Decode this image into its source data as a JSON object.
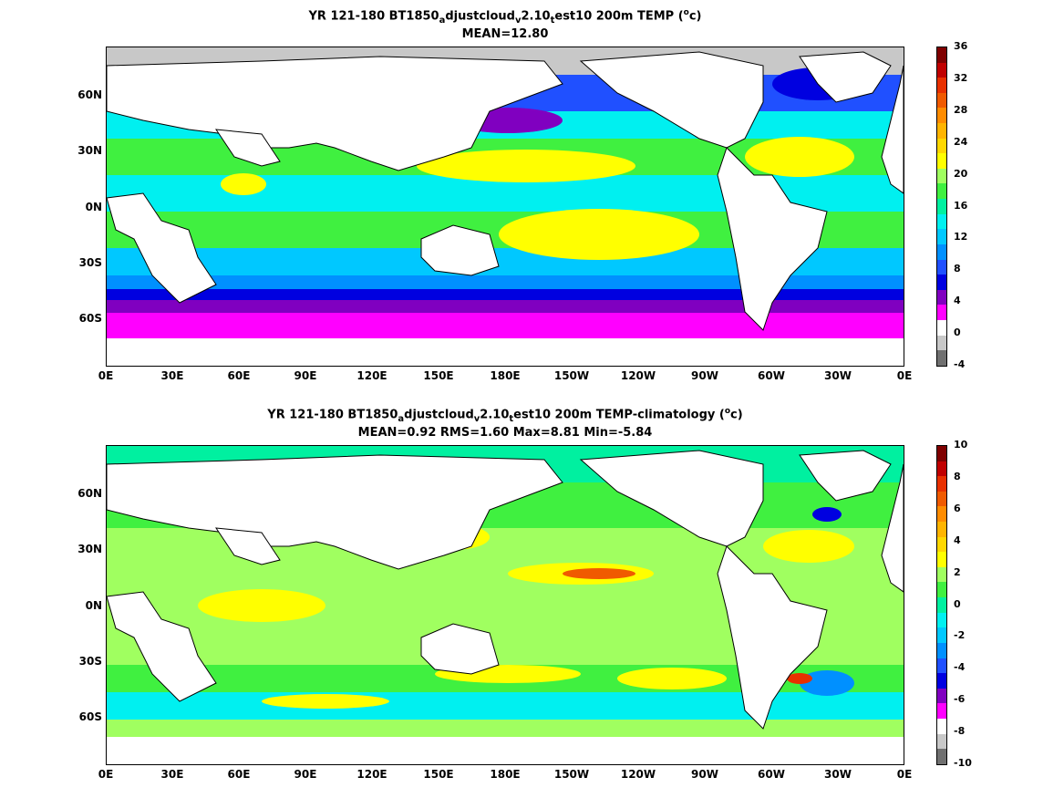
{
  "panels": [
    {
      "title_main": "YR 121-180 BT1850",
      "title_sub1": "a",
      "title_mid": "djustcloud",
      "title_sub2": "v",
      "title_mid2": "2.10",
      "title_sub3": "t",
      "title_end": "est10 200m TEMP (",
      "title_sup": "o",
      "title_unit": "c)",
      "subtitle": "MEAN=12.80",
      "colorbar_labels": [
        "36",
        "32",
        "28",
        "24",
        "20",
        "16",
        "12",
        "8",
        "4",
        "0",
        "-4"
      ],
      "colorbar_colors": [
        "#7f0000",
        "#c00000",
        "#e83000",
        "#f05a00",
        "#ff8c00",
        "#ffb400",
        "#ffd700",
        "#ffff00",
        "#a0ff60",
        "#40f040",
        "#00f0a0",
        "#00f0f0",
        "#00c8ff",
        "#0090ff",
        "#2050ff",
        "#0000e0",
        "#8000c0",
        "#ff00ff",
        "#ffffff",
        "#c8c8c8",
        "#707070"
      ]
    },
    {
      "title_main": "YR 121-180 BT1850",
      "title_sub1": "a",
      "title_mid": "djustcloud",
      "title_sub2": "v",
      "title_mid2": "2.10",
      "title_sub3": "t",
      "title_end": "est10 200m TEMP-climatology (",
      "title_sup": "o",
      "title_unit": "c)",
      "subtitle": "MEAN=0.92   RMS=1.60   Max=8.81   Min=-5.84",
      "colorbar_labels": [
        "10",
        "8",
        "6",
        "4",
        "2",
        "0",
        "-2",
        "-4",
        "-6",
        "-8",
        "-10"
      ],
      "colorbar_colors": [
        "#7f0000",
        "#c00000",
        "#e83000",
        "#f05a00",
        "#ff8c00",
        "#ffb400",
        "#ffd700",
        "#ffff00",
        "#a0ff60",
        "#40f040",
        "#00f0a0",
        "#00f0f0",
        "#00c8ff",
        "#0090ff",
        "#2050ff",
        "#0000e0",
        "#8000c0",
        "#ff00ff",
        "#ffffff",
        "#c8c8c8",
        "#707070"
      ]
    }
  ],
  "yaxis_labels": [
    "60N",
    "30N",
    "0N",
    "30S",
    "60S"
  ],
  "xaxis_labels": [
    "0E",
    "30E",
    "60E",
    "90E",
    "120E",
    "150E",
    "180E",
    "150W",
    "120W",
    "90W",
    "60W",
    "30W",
    "0E"
  ]
}
